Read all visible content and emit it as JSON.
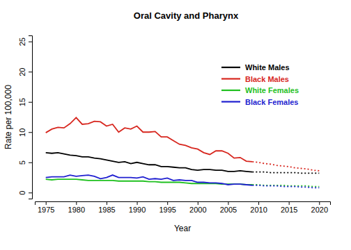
{
  "chart_data": {
    "type": "line",
    "title": "Oral Cavity and Pharynx",
    "x_label": "Year",
    "y_label": "Rate per 100,000",
    "x": [
      1975,
      1976,
      1977,
      1978,
      1979,
      1980,
      1981,
      1982,
      1983,
      1984,
      1985,
      1986,
      1987,
      1988,
      1989,
      1990,
      1991,
      1992,
      1993,
      1994,
      1995,
      1996,
      1997,
      1998,
      1999,
      2000,
      2001,
      2002,
      2003,
      2004,
      2005,
      2006,
      2007,
      2008,
      2009,
      2010,
      2011,
      2012,
      2013,
      2014,
      2015,
      2016,
      2017,
      2018,
      2019,
      2020
    ],
    "xlim": [
      1973.2,
      2021.8
    ],
    "xticks": [
      1975,
      1980,
      1985,
      1990,
      1995,
      2000,
      2005,
      2010,
      2015,
      2020
    ],
    "ylim": [
      -1,
      26
    ],
    "yticks": [
      0,
      5,
      10,
      15,
      20,
      25
    ],
    "legend": "top-right",
    "series": [
      {
        "name": "White Males",
        "color": "#000000",
        "line_style": "solid",
        "values": [
          6.6,
          6.5,
          6.6,
          6.4,
          6.2,
          6.1,
          5.9,
          5.9,
          5.7,
          5.6,
          5.4,
          5.2,
          5.0,
          5.1,
          4.8,
          5.0,
          4.8,
          4.6,
          4.6,
          4.3,
          4.3,
          4.2,
          4.1,
          4.1,
          3.8,
          3.7,
          3.8,
          3.8,
          3.7,
          3.7,
          3.5,
          3.5,
          3.6,
          3.5,
          3.4,
          null,
          null,
          null,
          null,
          null,
          null,
          null,
          null,
          null,
          null,
          null
        ]
      },
      {
        "name": "Black Males",
        "color": "#d7261e",
        "line_style": "solid",
        "values": [
          9.9,
          10.5,
          10.8,
          10.7,
          11.4,
          12.4,
          11.3,
          11.4,
          11.8,
          11.7,
          11.0,
          11.3,
          10.0,
          10.7,
          10.5,
          11.0,
          10.0,
          10.0,
          10.1,
          9.2,
          9.2,
          8.6,
          8.0,
          7.8,
          7.4,
          7.2,
          6.6,
          6.3,
          6.9,
          6.9,
          6.5,
          5.7,
          5.8,
          5.2,
          5.1,
          null,
          null,
          null,
          null,
          null,
          null,
          null,
          null,
          null,
          null,
          null
        ]
      },
      {
        "name": "White Females",
        "color": "#1fc01f",
        "line_style": "solid",
        "values": [
          2.2,
          2.1,
          2.2,
          2.2,
          2.2,
          2.2,
          2.1,
          2.0,
          2.0,
          2.0,
          2.0,
          2.0,
          1.9,
          1.9,
          1.9,
          1.9,
          1.9,
          1.8,
          1.8,
          1.7,
          1.7,
          1.7,
          1.7,
          1.6,
          1.5,
          1.5,
          1.5,
          1.5,
          1.5,
          1.4,
          1.4,
          1.4,
          1.4,
          1.3,
          1.3,
          null,
          null,
          null,
          null,
          null,
          null,
          null,
          null,
          null,
          null,
          null
        ]
      },
      {
        "name": "Black Females",
        "color": "#1f1fd0",
        "line_style": "solid",
        "values": [
          2.5,
          2.6,
          2.6,
          2.6,
          2.9,
          2.7,
          2.8,
          2.9,
          2.7,
          2.3,
          2.5,
          2.9,
          2.5,
          2.5,
          2.5,
          2.4,
          2.6,
          2.2,
          2.3,
          2.2,
          2.4,
          2.0,
          2.1,
          2.0,
          2.0,
          1.7,
          1.7,
          1.6,
          1.6,
          1.5,
          1.3,
          1.4,
          1.4,
          1.3,
          1.2,
          null,
          null,
          null,
          null,
          null,
          null,
          null,
          null,
          null,
          null,
          null
        ]
      },
      {
        "color": "#000000",
        "line_style": "dotted",
        "values": [
          null,
          null,
          null,
          null,
          null,
          null,
          null,
          null,
          null,
          null,
          null,
          null,
          null,
          null,
          null,
          null,
          null,
          null,
          null,
          null,
          null,
          null,
          null,
          null,
          null,
          null,
          null,
          null,
          null,
          null,
          null,
          null,
          null,
          null,
          3.4,
          3.4,
          3.4,
          3.3,
          3.3,
          3.3,
          3.3,
          3.3,
          3.2,
          3.2,
          3.2,
          3.2
        ]
      },
      {
        "color": "#d7261e",
        "line_style": "dotted",
        "values": [
          null,
          null,
          null,
          null,
          null,
          null,
          null,
          null,
          null,
          null,
          null,
          null,
          null,
          null,
          null,
          null,
          null,
          null,
          null,
          null,
          null,
          null,
          null,
          null,
          null,
          null,
          null,
          null,
          null,
          null,
          null,
          null,
          null,
          null,
          5.1,
          5.0,
          4.8,
          4.7,
          4.5,
          4.4,
          4.3,
          4.1,
          4.0,
          3.9,
          3.7,
          3.6
        ]
      },
      {
        "color": "#1fc01f",
        "line_style": "dotted",
        "values": [
          null,
          null,
          null,
          null,
          null,
          null,
          null,
          null,
          null,
          null,
          null,
          null,
          null,
          null,
          null,
          null,
          null,
          null,
          null,
          null,
          null,
          null,
          null,
          null,
          null,
          null,
          null,
          null,
          null,
          null,
          null,
          null,
          null,
          null,
          1.3,
          1.3,
          1.2,
          1.2,
          1.2,
          1.2,
          1.1,
          1.1,
          1.1,
          1.1,
          1.0,
          1.0
        ]
      },
      {
        "color": "#1f1fd0",
        "line_style": "dotted",
        "values": [
          null,
          null,
          null,
          null,
          null,
          null,
          null,
          null,
          null,
          null,
          null,
          null,
          null,
          null,
          null,
          null,
          null,
          null,
          null,
          null,
          null,
          null,
          null,
          null,
          null,
          null,
          null,
          null,
          null,
          null,
          null,
          null,
          null,
          null,
          1.2,
          1.2,
          1.1,
          1.1,
          1.1,
          1.0,
          1.0,
          1.0,
          0.9,
          0.9,
          0.8,
          0.8
        ]
      }
    ]
  }
}
